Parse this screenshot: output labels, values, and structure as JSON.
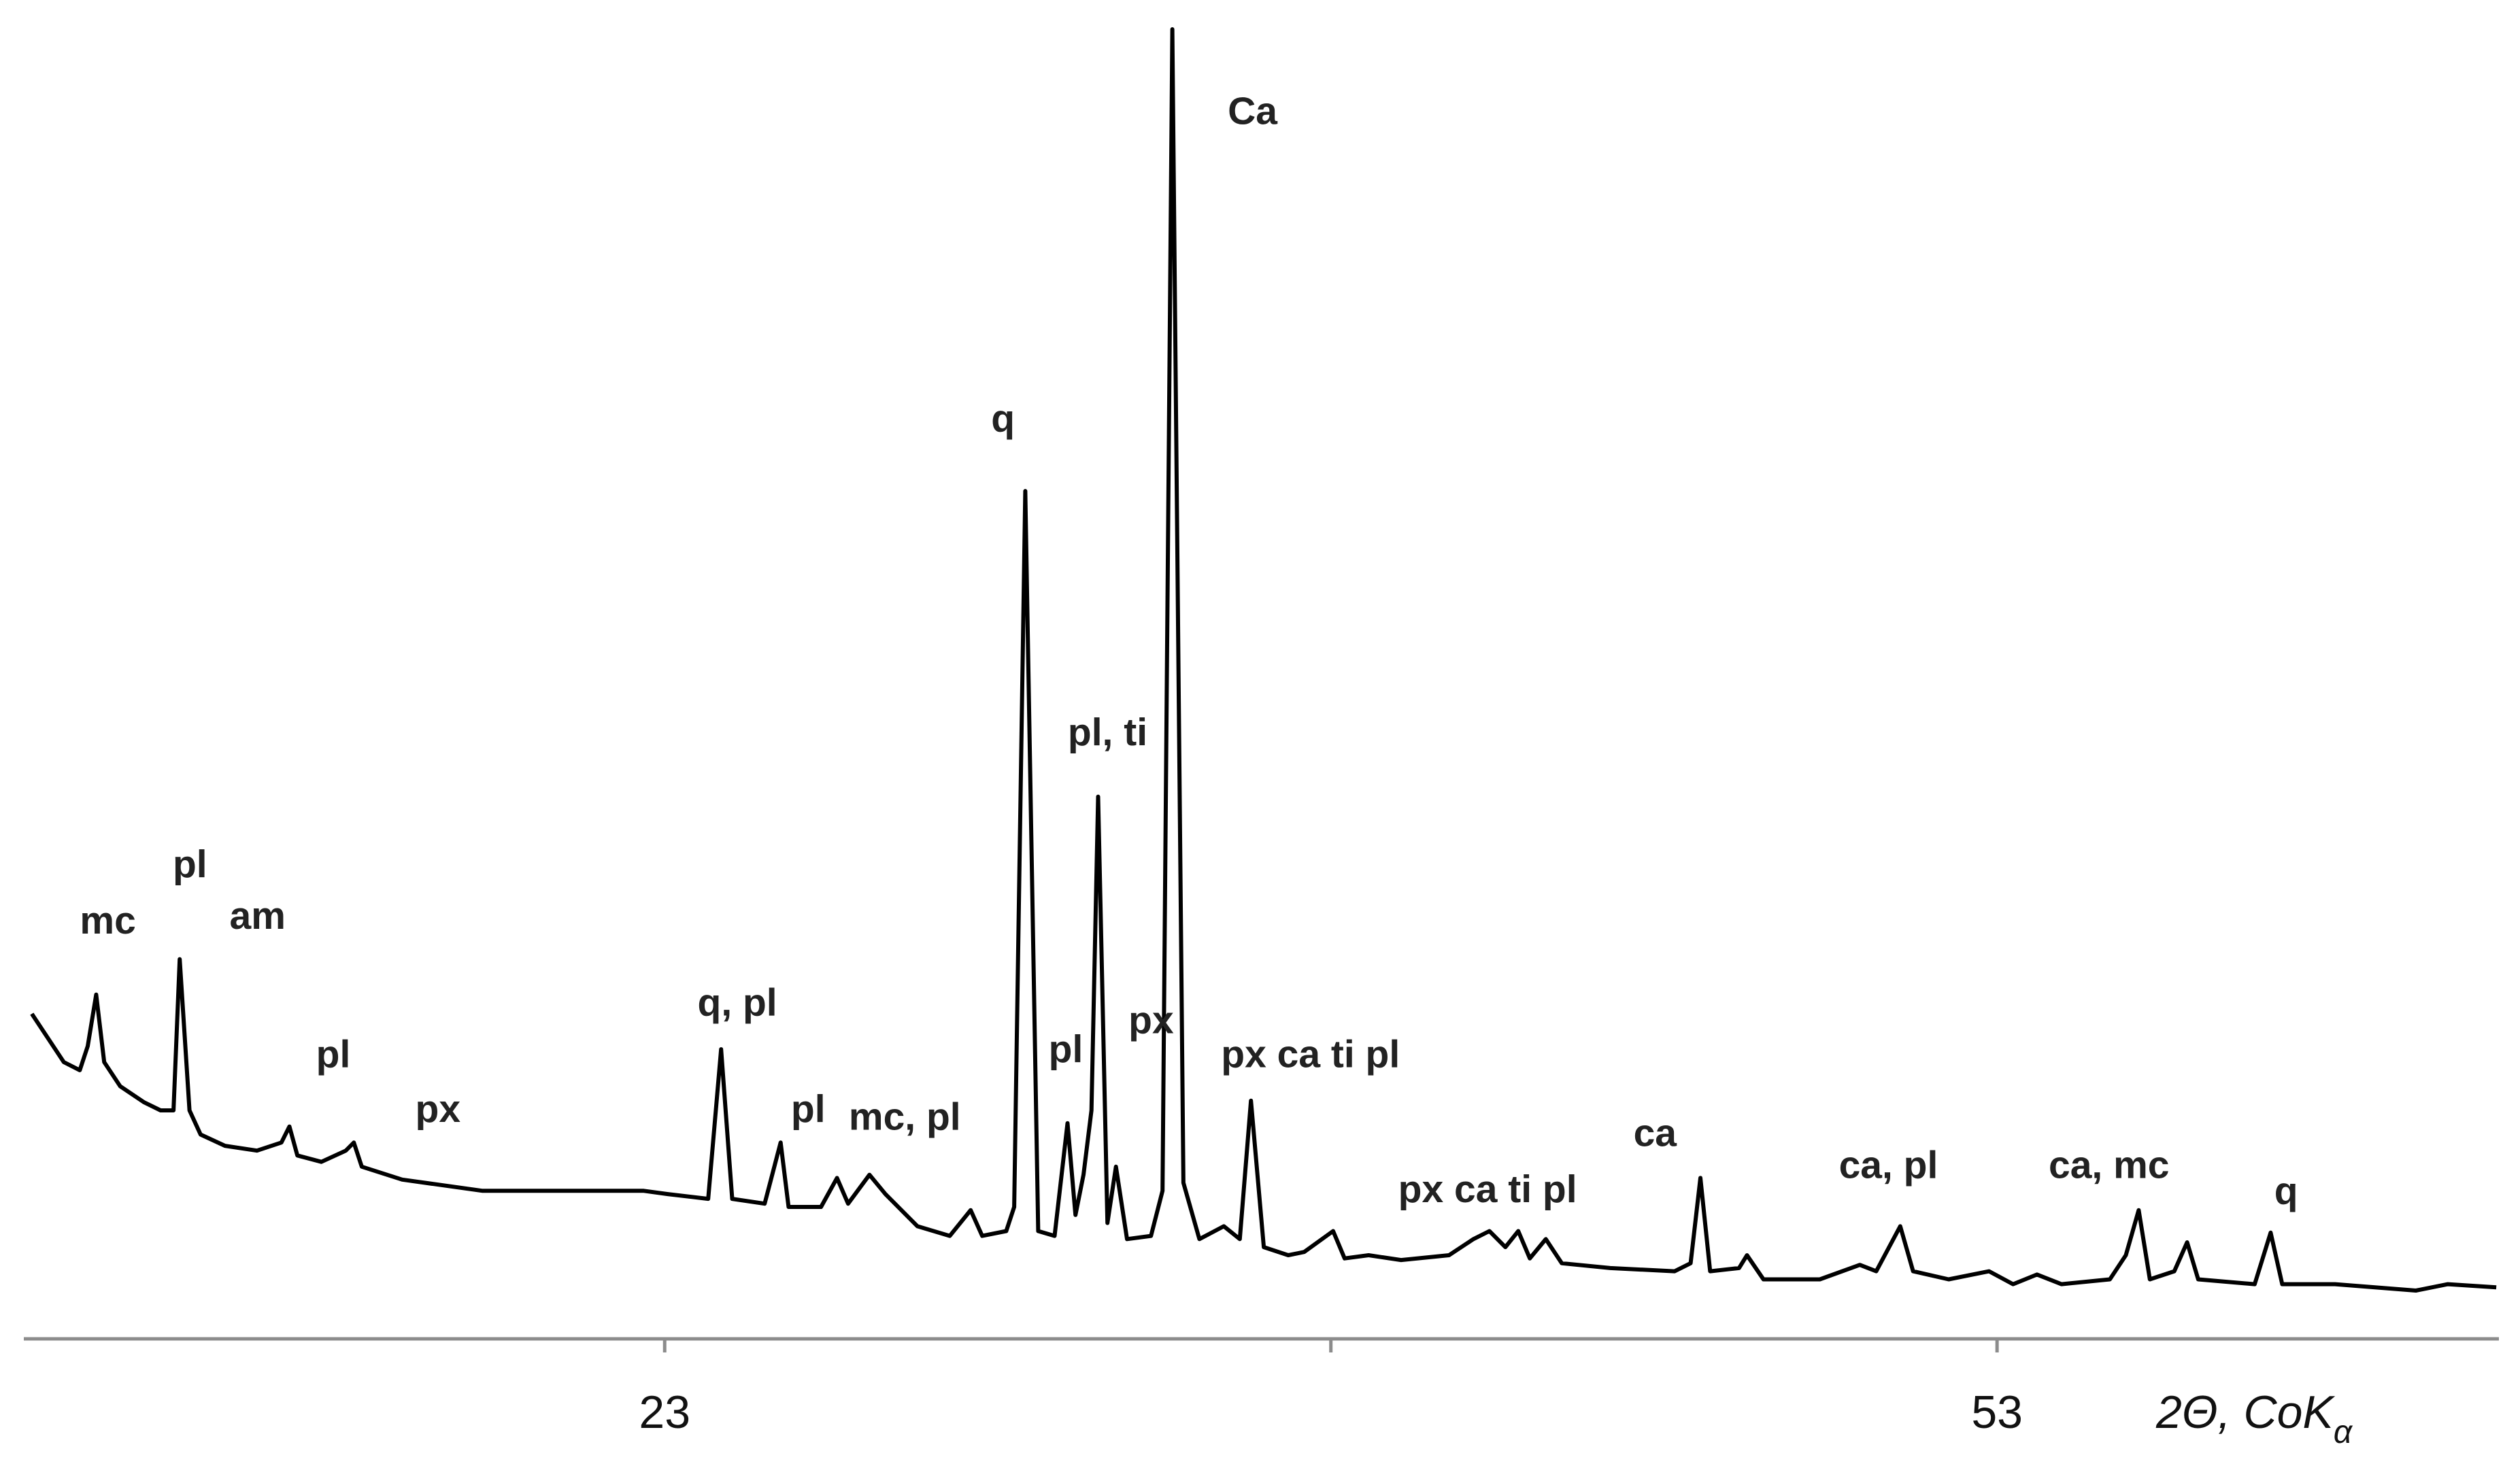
{
  "chart_data": {
    "type": "line",
    "x_label": [
      "2Θ, CoK",
      "α"
    ],
    "x": [
      8.75,
      9.11,
      9.47,
      9.83,
      10.01,
      10.2,
      10.38,
      10.74,
      11.28,
      11.65,
      11.94,
      12.08,
      12.3,
      12.55,
      13.1,
      13.82,
      14.37,
      14.55,
      14.73,
      15.27,
      15.82,
      16.0,
      16.18,
      17.09,
      18.9,
      20.71,
      22.53,
      23.07,
      23.98,
      24.27,
      24.52,
      25.25,
      25.61,
      25.79,
      26.52,
      26.88,
      27.13,
      27.61,
      27.97,
      28.69,
      29.42,
      29.89,
      30.15,
      30.69,
      30.87,
      31.12,
      31.41,
      31.78,
      32.07,
      32.25,
      32.43,
      32.61,
      32.76,
      32.97,
      33.16,
      33.41,
      33.95,
      34.21,
      34.43,
      34.68,
      35.04,
      35.59,
      35.95,
      36.2,
      36.49,
      37.04,
      37.4,
      38.05,
      38.31,
      38.85,
      39.58,
      40.66,
      41.21,
      41.57,
      41.93,
      42.22,
      42.48,
      42.84,
      43.2,
      44.29,
      45.74,
      46.1,
      46.32,
      46.54,
      47.19,
      47.37,
      47.74,
      49.01,
      49.91,
      50.28,
      50.82,
      51.11,
      51.91,
      52.82,
      53.36,
      53.9,
      54.45,
      55.54,
      55.9,
      56.19,
      56.44,
      56.99,
      57.28,
      57.53,
      58.8,
      59.16,
      59.42,
      60.61,
      62.43,
      63.15,
      64.24
    ],
    "values": [
      202,
      187,
      172,
      167,
      182,
      214,
      172,
      157,
      147,
      142,
      142,
      236,
      142,
      127,
      120,
      117,
      122,
      132,
      114,
      110,
      117,
      122,
      107,
      99,
      92,
      92,
      92,
      90,
      87,
      180,
      87,
      84,
      122,
      82,
      82,
      100,
      84,
      102,
      90,
      70,
      64,
      80,
      64,
      67,
      82,
      527,
      67,
      64,
      134,
      77,
      102,
      142,
      337,
      72,
      107,
      62,
      64,
      92,
      814,
      97,
      62,
      70,
      62,
      148,
      57,
      52,
      54,
      67,
      50,
      52,
      49,
      52,
      62,
      67,
      57,
      67,
      50,
      62,
      47,
      44,
      42,
      47,
      100,
      42,
      44,
      52,
      37,
      37,
      46,
      42,
      70,
      42,
      37,
      42,
      34,
      40,
      34,
      37,
      52,
      80,
      37,
      42,
      60,
      37,
      34,
      66,
      34,
      34,
      30,
      34,
      32
    ],
    "color": "#000000",
    "xlim": [
      8.57,
      64.3
    ],
    "xticks": [
      23,
      53
    ],
    "minor_xticks": [
      38
    ],
    "ylim": [
      0,
      814
    ],
    "annotations": [
      "mc",
      "pl",
      "am",
      "pl",
      "px",
      "q, pl",
      "pl",
      "mc, pl",
      "q",
      "pl",
      "pl, ti",
      "px",
      "Ca",
      "px ca ti pl",
      "px ca ti pl",
      "ca",
      "ca, pl",
      "ca, mc",
      "q"
    ]
  }
}
